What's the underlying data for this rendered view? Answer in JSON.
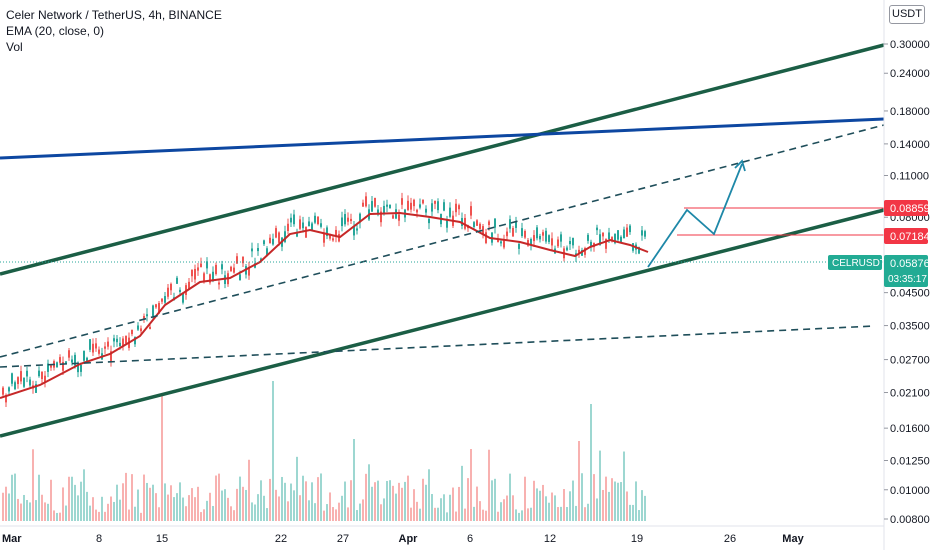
{
  "header": {
    "title": "Celer Network / TetherUS, 4h, BINANCE",
    "indicator": "EMA (20, close, 0)",
    "volume_label": "Vol",
    "currency": "USDT"
  },
  "colors": {
    "up_candle": "#26a69a",
    "down_candle": "#ef5350",
    "ema_line": "#c62828",
    "channel_lines": "#1b5e45",
    "resistance_line": "#0d47a1",
    "projection": "#1e88a8",
    "level_red": "#f23645",
    "price_badge": "#22ab94"
  },
  "chart_data": {
    "type": "candlestick",
    "title": "Celer Network / TetherUS, 4h, BINANCE",
    "y_scale": "log",
    "y_ticks": [
      "0.30000",
      "0.24000",
      "0.18000",
      "0.14000",
      "0.11000",
      "0.08000",
      "0.04500",
      "0.03500",
      "0.02700",
      "0.02100",
      "0.01600",
      "0.01250",
      "0.01000",
      "0.00800"
    ],
    "x_ticks": [
      "Mar",
      "8",
      "15",
      "22",
      "27",
      "Apr",
      "6",
      "12",
      "19",
      "26",
      "May"
    ],
    "price_badges": [
      {
        "label": "0.08859",
        "color": "red"
      },
      {
        "label": "0.07184",
        "color": "red"
      },
      {
        "symbol": "CELRUSDT",
        "label": "0.05876",
        "timer": "03:35:17",
        "color": "teal"
      }
    ],
    "last_price": 0.05876,
    "series": [
      {
        "name": "EMA (20, close, 0)",
        "x": [
          "Mar",
          "8",
          "15",
          "22",
          "27",
          "Apr",
          "6",
          "12",
          "19"
        ],
        "values": [
          0.0215,
          0.0275,
          0.045,
          0.068,
          0.074,
          0.076,
          0.069,
          0.063,
          0.06
        ]
      }
    ]
  }
}
